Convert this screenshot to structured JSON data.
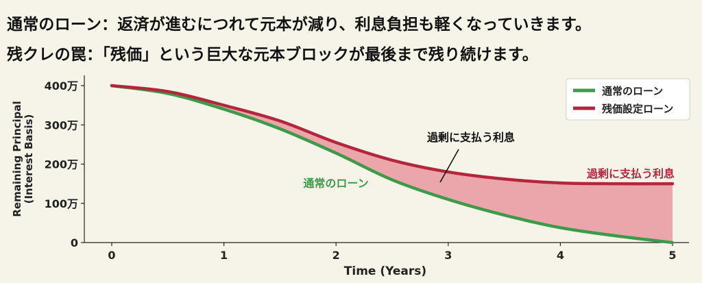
{
  "headlines": {
    "line1": "通常のローン：返済が進むにつれて元本が減り、利息負担も軽くなっていきます。",
    "line2": "残クレの罠：「残価」という巨大な元本ブロックが最後まで残り続けます。"
  },
  "chart_data": {
    "type": "area",
    "xlabel": "Time (Years)",
    "ylabel": "Remaining Principal\n(Interest Basis)",
    "xlim": [
      0,
      5
    ],
    "ylim": [
      0,
      400
    ],
    "x_ticks": [
      0,
      1,
      2,
      3,
      4,
      5
    ],
    "x_tick_labels": [
      "0",
      "1",
      "2",
      "3",
      "4",
      "5"
    ],
    "y_ticks": [
      0,
      100,
      200,
      300,
      400
    ],
    "y_tick_labels": [
      "0",
      "100万",
      "200万",
      "300万",
      "400万"
    ],
    "grid": false,
    "legend_position": "top-right",
    "series": [
      {
        "name": "通常のローン",
        "color": "#3c9a48",
        "x": [
          0,
          0.5,
          1,
          1.5,
          2,
          2.5,
          3,
          3.5,
          4,
          4.5,
          5
        ],
        "values": [
          400,
          380,
          340,
          290,
          228,
          160,
          110,
          70,
          38,
          17,
          0
        ]
      },
      {
        "name": "残価設定ローン",
        "color": "#b3273d",
        "x": [
          0,
          0.5,
          1,
          1.5,
          2,
          2.5,
          3,
          3.5,
          4,
          4.5,
          5
        ],
        "values": [
          400,
          385,
          350,
          310,
          255,
          210,
          180,
          162,
          152,
          150,
          150
        ]
      }
    ],
    "fill_between": {
      "color": "#eaa6aa"
    },
    "annotations": {
      "green_label": {
        "text": "通常のローン",
        "color": "#3c9a48"
      },
      "center_label": {
        "text": "過剰に支払う利息",
        "color": "#111111"
      },
      "right_label": {
        "text": "過剰に支払う利息",
        "color": "#b3273d"
      }
    }
  }
}
